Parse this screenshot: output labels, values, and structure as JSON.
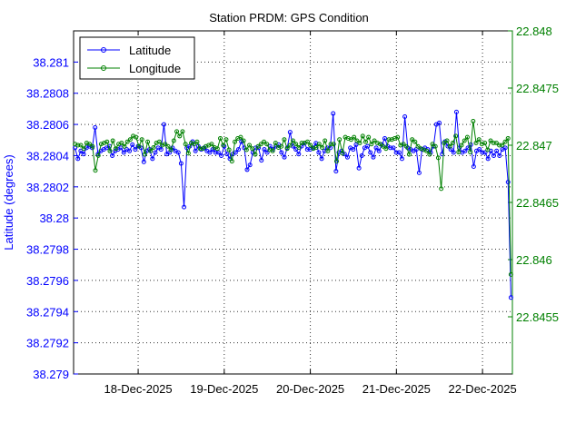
{
  "chart_data": {
    "type": "line",
    "title": "Station PRDM: GPS Condition",
    "ylabel_left": "Latitude (degrees)",
    "ylabel_right": "",
    "xlabel": "",
    "grid": true,
    "legend_position": "top-left",
    "x_range_days": [
      "17-Dec-2025 06:00",
      "22-Dec-2025 08:20"
    ],
    "x_tick_labels": [
      "18-Dec-2025",
      "19-Dec-2025",
      "20-Dec-2025",
      "21-Dec-2025",
      "22-Dec-2025"
    ],
    "x_tick_dates": [
      "18-Dec-2025",
      "19-Dec-2025",
      "20-Dec-2025",
      "21-Dec-2025",
      "22-Dec-2025"
    ],
    "ylim_left": [
      38.279,
      38.2812
    ],
    "yticks_left": [
      "38.279",
      "38.2792",
      "38.2794",
      "38.2796",
      "38.2798",
      "38.28",
      "38.2802",
      "38.2804",
      "38.2806",
      "38.2808",
      "38.281"
    ],
    "ylim_right": [
      22.845,
      22.848
    ],
    "yticks_right": [
      "22.8455",
      "22.846",
      "22.8465",
      "22.847",
      "22.8475",
      "22.848"
    ],
    "series": [
      {
        "name": "Latitude",
        "axis": "left",
        "color": "#0000ff",
        "values": [
          38.28045,
          38.28038,
          38.28043,
          38.28041,
          38.28045,
          38.28046,
          38.28045,
          38.28058,
          38.28041,
          38.28043,
          38.28044,
          38.28045,
          38.28046,
          38.2804,
          38.28043,
          38.28044,
          38.28045,
          38.28042,
          38.28044,
          38.28043,
          38.28047,
          38.28044,
          38.28046,
          38.28045,
          38.28036,
          38.28043,
          38.28044,
          38.28038,
          38.28042,
          38.28045,
          38.28044,
          38.2806,
          38.28041,
          38.28042,
          38.28045,
          38.28043,
          38.28042,
          38.28035,
          38.28007,
          38.28045,
          38.28046,
          38.28049,
          38.28043,
          38.28046,
          38.28044,
          38.28045,
          38.28043,
          38.28042,
          38.28044,
          38.28042,
          38.28042,
          38.2804,
          38.28046,
          38.28041,
          38.28038,
          38.28041,
          38.28042,
          38.28044,
          38.28049,
          38.28045,
          38.28031,
          38.28034,
          38.28042,
          38.28045,
          38.28045,
          38.28037,
          38.28044,
          38.28042,
          38.28046,
          38.28044,
          38.28046,
          38.28047,
          38.28042,
          38.28039,
          38.28045,
          38.28055,
          38.28046,
          38.28044,
          38.28041,
          38.28046,
          38.28048,
          38.28044,
          38.28044,
          38.28045,
          38.28048,
          38.28042,
          38.28038,
          38.28043,
          38.28045,
          38.28045,
          38.28067,
          38.2803,
          38.28042,
          38.28043,
          38.28041,
          38.28039,
          38.28045,
          38.28044,
          38.28047,
          38.28032,
          38.2804,
          38.28045,
          38.28046,
          38.28042,
          38.28039,
          38.28045,
          38.28043,
          38.28047,
          38.28051,
          38.28046,
          38.28045,
          38.28045,
          38.28042,
          38.28042,
          38.28038,
          38.28065,
          38.28045,
          38.28044,
          38.28043,
          38.28044,
          38.28029,
          38.28044,
          38.28045,
          38.28044,
          38.28042,
          38.28046,
          38.2806,
          38.28061,
          38.28041,
          38.28049,
          38.28046,
          38.28044,
          38.28042,
          38.28068,
          38.28045,
          38.28042,
          38.28043,
          38.28045,
          38.28047,
          38.28033,
          38.28043,
          38.28044,
          38.28042,
          38.28042,
          38.28038,
          38.28043,
          38.2804,
          38.28043,
          38.2804,
          38.28044,
          38.28045,
          38.28023,
          38.27949
        ]
      },
      {
        "name": "Longitude",
        "axis": "right",
        "color": "#008000",
        "values": [
          22.84701,
          22.847,
          22.847,
          22.84697,
          22.84702,
          22.84701,
          22.84699,
          22.84678,
          22.84691,
          22.84701,
          22.84702,
          22.84703,
          22.84695,
          22.84704,
          22.84697,
          22.84701,
          22.84702,
          22.84699,
          22.84703,
          22.84705,
          22.84708,
          22.84707,
          22.84699,
          22.84705,
          22.84692,
          22.84703,
          22.84695,
          22.84698,
          22.84702,
          22.84703,
          22.847,
          22.84701,
          22.84699,
          22.84696,
          22.84704,
          22.84712,
          22.84708,
          22.84712,
          22.84701,
          22.84693,
          22.84702,
          22.84701,
          22.84703,
          22.84697,
          22.84697,
          22.84699,
          22.847,
          22.84701,
          22.84698,
          22.84697,
          22.84706,
          22.847,
          22.84705,
          22.84696,
          22.84686,
          22.84703,
          22.84706,
          22.84707,
          22.84704,
          22.84696,
          22.847,
          22.84697,
          22.84692,
          22.84699,
          22.84701,
          22.84703,
          22.84701,
          22.84696,
          22.84695,
          22.84702,
          22.84698,
          22.84699,
          22.84705,
          22.84697,
          22.847,
          22.84704,
          22.84701,
          22.84698,
          22.84702,
          22.84702,
          22.84703,
          22.847,
          22.84697,
          22.84698,
          22.84701,
          22.84698,
          22.84704,
          22.84695,
          22.84701,
          22.84701,
          22.84686,
          22.84705,
          22.84693,
          22.84707,
          22.84706,
          22.84705,
          22.84707,
          22.84704,
          22.84702,
          22.84708,
          22.84703,
          22.84707,
          22.84701,
          22.84704,
          22.84702,
          22.84701,
          22.84699,
          22.84697,
          22.84705,
          22.84705,
          22.84706,
          22.84707,
          22.847,
          22.84701,
          22.84699,
          22.84692,
          22.84705,
          22.84703,
          22.84699,
          22.84697,
          22.84696,
          22.84695,
          22.84692,
          22.84701,
          22.84699,
          22.84689,
          22.84662,
          22.84702,
          22.84704,
          22.84699,
          22.84702,
          22.84708,
          22.84694,
          22.847,
          22.84704,
          22.84707,
          22.84694,
          22.84721,
          22.84702,
          22.84705,
          22.84701,
          22.84702,
          22.84696,
          22.84704,
          22.84702,
          22.84702,
          22.847,
          22.847,
          22.84703,
          22.84706,
          22.84587
        ]
      }
    ]
  }
}
